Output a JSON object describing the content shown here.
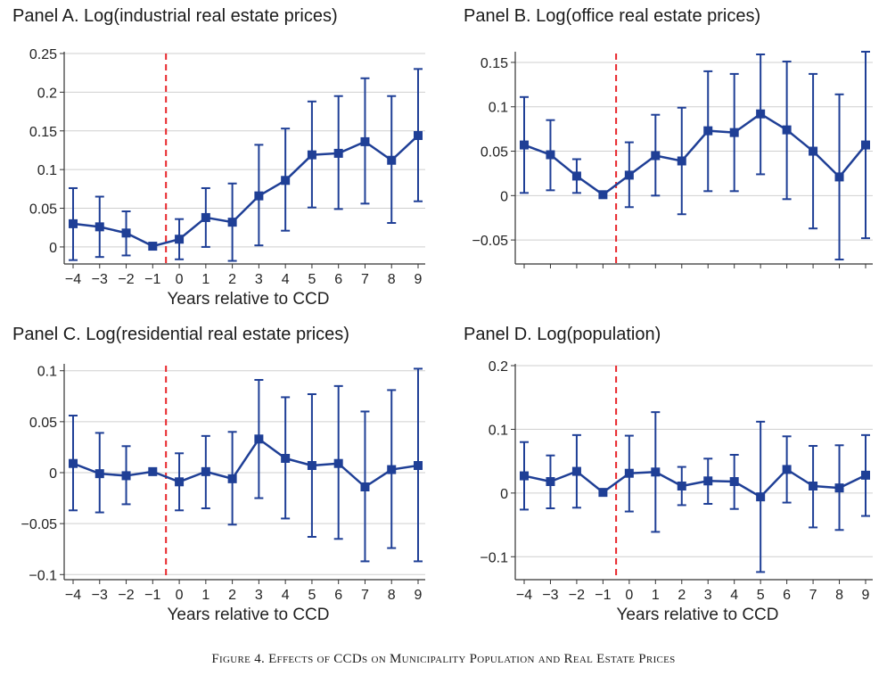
{
  "figure_caption": "Figure 4. Effects of CCDs on Municipality Population and Real Estate Prices",
  "chart_data": [
    {
      "id": "A",
      "type": "line",
      "title": "Panel A. Log(industrial real estate prices)",
      "xlabel": "Years relative to CCD",
      "x": [
        -4,
        -3,
        -2,
        -1,
        0,
        1,
        2,
        3,
        4,
        5,
        6,
        7,
        8,
        9
      ],
      "x_tick_labels": [
        "−4",
        "−3",
        "−2",
        "−1",
        "0",
        "1",
        "2",
        "3",
        "4",
        "5",
        "6",
        "7",
        "8",
        "9"
      ],
      "y": [
        0.03,
        0.026,
        0.018,
        0.001,
        0.01,
        0.038,
        0.032,
        0.066,
        0.086,
        0.119,
        0.121,
        0.136,
        0.112,
        0.144
      ],
      "ci_low": [
        -0.017,
        -0.013,
        -0.011,
        0.001,
        -0.016,
        0.0,
        -0.018,
        0.002,
        0.021,
        0.051,
        0.049,
        0.056,
        0.031,
        0.059
      ],
      "ci_high": [
        0.076,
        0.065,
        0.046,
        0.001,
        0.036,
        0.076,
        0.082,
        0.132,
        0.153,
        0.188,
        0.195,
        0.218,
        0.195,
        0.23
      ],
      "ylim": [
        -0.022,
        0.25
      ],
      "y_ticks": [
        0,
        0.05,
        0.1,
        0.15,
        0.2,
        0.25
      ],
      "y_tick_labels": [
        "0",
        "0.05",
        "0.1",
        "0.15",
        "0.2",
        "0.25"
      ],
      "event_line_x": -0.5,
      "grid": true
    },
    {
      "id": "B",
      "type": "line",
      "title": "Panel B. Log(office real estate prices)",
      "xlabel": "",
      "x": [
        -4,
        -3,
        -2,
        -1,
        0,
        1,
        2,
        3,
        4,
        5,
        6,
        7,
        8,
        9
      ],
      "x_tick_labels": [],
      "y": [
        0.057,
        0.046,
        0.022,
        0.001,
        0.023,
        0.045,
        0.039,
        0.073,
        0.071,
        0.092,
        0.074,
        0.05,
        0.021,
        0.057
      ],
      "ci_low": [
        0.003,
        0.006,
        0.003,
        0.001,
        -0.013,
        0.0,
        -0.021,
        0.005,
        0.005,
        0.024,
        -0.004,
        -0.037,
        -0.072,
        -0.048
      ],
      "ci_high": [
        0.111,
        0.085,
        0.041,
        0.001,
        0.06,
        0.091,
        0.099,
        0.14,
        0.137,
        0.159,
        0.151,
        0.137,
        0.114,
        0.162
      ],
      "ylim": [
        -0.077,
        0.16
      ],
      "y_ticks": [
        -0.05,
        0,
        0.05,
        0.1,
        0.15
      ],
      "y_tick_labels": [
        "−0.05",
        "0",
        "0.05",
        "0.1",
        "0.15"
      ],
      "event_line_x": -0.5,
      "grid": true
    },
    {
      "id": "C",
      "type": "line",
      "title": "Panel C. Log(residential real estate prices)",
      "xlabel": "Years relative to CCD",
      "x": [
        -4,
        -3,
        -2,
        -1,
        0,
        1,
        2,
        3,
        4,
        5,
        6,
        7,
        8,
        9
      ],
      "x_tick_labels": [
        "−4",
        "−3",
        "−2",
        "−1",
        "0",
        "1",
        "2",
        "3",
        "4",
        "5",
        "6",
        "7",
        "8",
        "9"
      ],
      "y": [
        0.009,
        -0.001,
        -0.003,
        0.001,
        -0.009,
        0.001,
        -0.006,
        0.033,
        0.014,
        0.007,
        0.009,
        -0.014,
        0.003,
        0.007
      ],
      "ci_low": [
        -0.037,
        -0.039,
        -0.031,
        0.001,
        -0.037,
        -0.035,
        -0.051,
        -0.025,
        -0.045,
        -0.063,
        -0.065,
        -0.087,
        -0.074,
        -0.087
      ],
      "ci_high": [
        0.056,
        0.039,
        0.026,
        0.001,
        0.019,
        0.036,
        0.04,
        0.091,
        0.074,
        0.077,
        0.085,
        0.06,
        0.081,
        0.102
      ],
      "ylim": [
        -0.105,
        0.105
      ],
      "y_ticks": [
        -0.1,
        -0.05,
        0,
        0.05,
        0.1
      ],
      "y_tick_labels": [
        "−0.1",
        "−0.05",
        "0",
        "0.05",
        "0.1"
      ],
      "event_line_x": -0.5,
      "grid": true
    },
    {
      "id": "D",
      "type": "line",
      "title": "Panel D. Log(population)",
      "xlabel": "Years relative to CCD",
      "x": [
        -4,
        -3,
        -2,
        -1,
        0,
        1,
        2,
        3,
        4,
        5,
        6,
        7,
        8,
        9
      ],
      "x_tick_labels": [
        "−4",
        "−3",
        "−2",
        "−1",
        "0",
        "1",
        "2",
        "3",
        "4",
        "5",
        "6",
        "7",
        "8",
        "9"
      ],
      "y": [
        0.027,
        0.018,
        0.034,
        0.001,
        0.031,
        0.033,
        0.011,
        0.019,
        0.018,
        -0.006,
        0.037,
        0.011,
        0.008,
        0.028
      ],
      "ci_low": [
        -0.026,
        -0.024,
        -0.023,
        0.001,
        -0.029,
        -0.061,
        -0.019,
        -0.017,
        -0.025,
        -0.124,
        -0.015,
        -0.054,
        -0.058,
        -0.036
      ],
      "ci_high": [
        0.08,
        0.059,
        0.091,
        0.001,
        0.09,
        0.127,
        0.041,
        0.054,
        0.06,
        0.112,
        0.089,
        0.074,
        0.075,
        0.091
      ],
      "ylim": [
        -0.136,
        0.2
      ],
      "y_ticks": [
        -0.1,
        0,
        0.1,
        0.2
      ],
      "y_tick_labels": [
        "−0.1",
        "0",
        "0.1",
        "0.2"
      ],
      "event_line_x": -0.5,
      "grid": true
    }
  ]
}
